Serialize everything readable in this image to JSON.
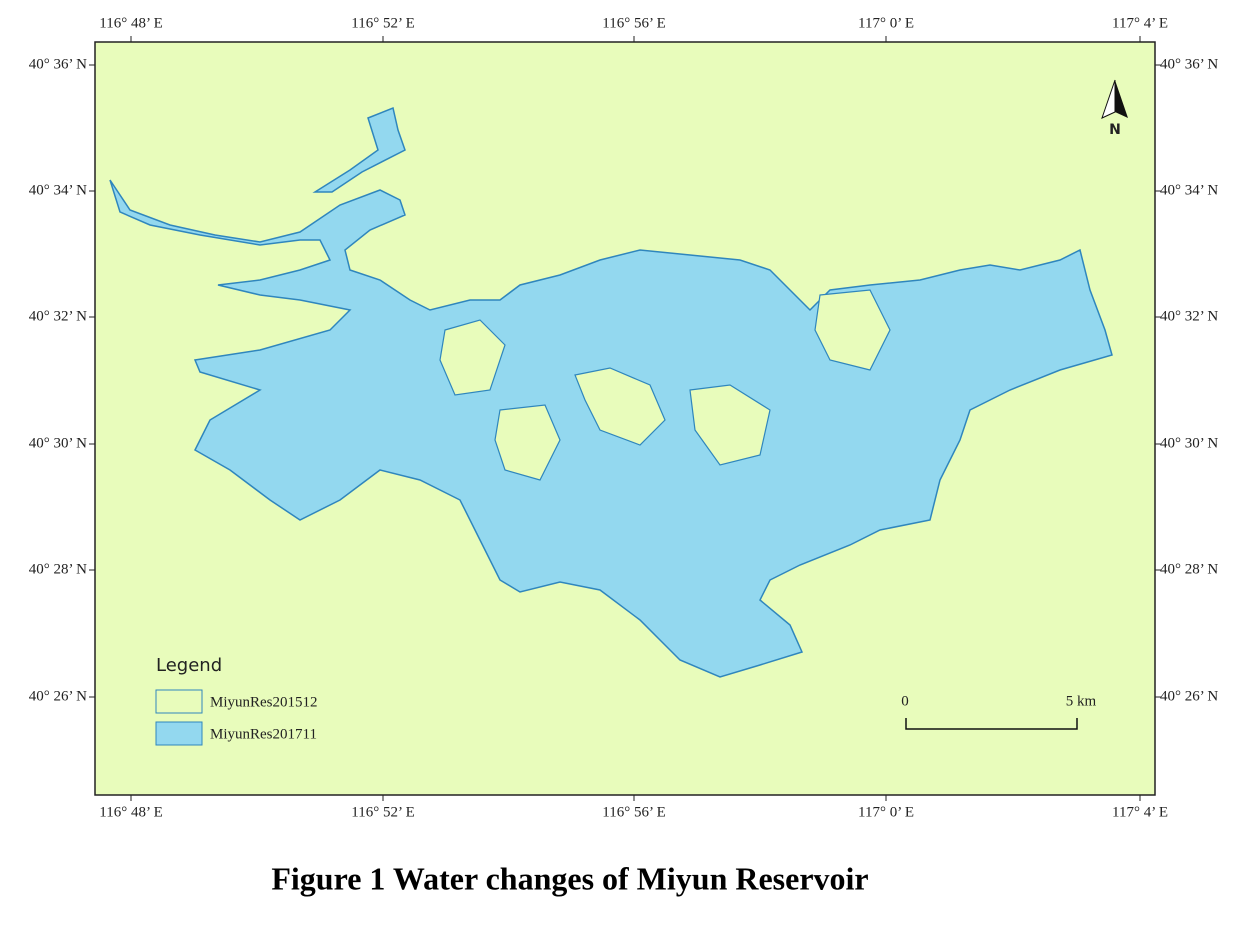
{
  "map": {
    "x_labels": [
      "116° 48’ E",
      "116° 52’ E",
      "116° 56’ E",
      "117° 0’ E",
      "117° 4’ E"
    ],
    "y_labels": [
      "40° 36’ N",
      "40° 34’ N",
      "40° 32’ N",
      "40° 30’ N",
      "40° 28’ N",
      "40° 26’ N"
    ],
    "north": "N",
    "legend": {
      "title": "Legend",
      "items": [
        "MiyunRes201512",
        "MiyunRes201711"
      ]
    },
    "scale": {
      "start": "0",
      "end": "5 km"
    }
  },
  "caption": "Figure 1  Water changes of Miyun Reservoir"
}
